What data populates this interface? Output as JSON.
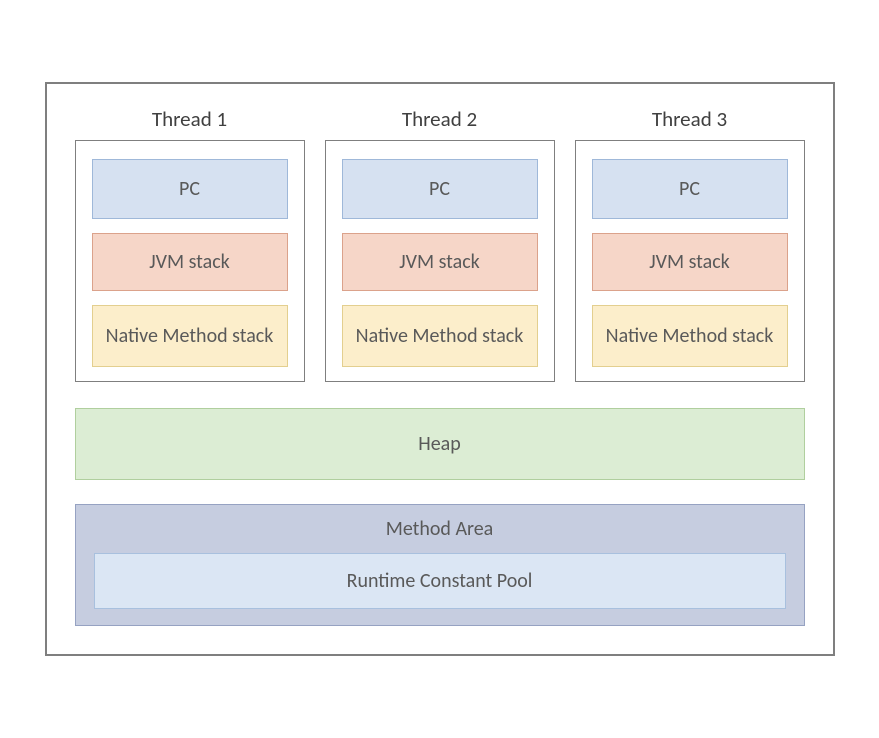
{
  "diagram": {
    "type": "infographic",
    "background_color": "#ffffff",
    "container_border": "#7f7f7f",
    "text_color": "#595959",
    "font_family": "Calibri",
    "threads": [
      {
        "title": "Thread 1",
        "pc": "PC",
        "jvm": "JVM stack",
        "native": "Native Method stack"
      },
      {
        "title": "Thread 2",
        "pc": "PC",
        "jvm": "JVM stack",
        "native": "Native Method stack"
      },
      {
        "title": "Thread 3",
        "pc": "PC",
        "jvm": "JVM stack",
        "native": "Native Method stack"
      }
    ],
    "heap_label": "Heap",
    "method_area_label": "Method Area",
    "constant_pool_label": "Runtime Constant Pool",
    "colors": {
      "pc_fill": "#d6e1f1",
      "pc_border": "#9fb8d9",
      "jvm_fill": "#f6d6c8",
      "jvm_border": "#dba28b",
      "native_fill": "#fceecb",
      "native_border": "#e3cf8f",
      "heap_fill": "#dcedd4",
      "heap_border": "#b0cf9e",
      "method_fill": "#c6cde0",
      "method_border": "#96a2c2",
      "pool_fill": "#dbe6f4",
      "pool_border": "#a8c0de"
    },
    "title_fontsize": 21,
    "label_fontsize": 20
  }
}
